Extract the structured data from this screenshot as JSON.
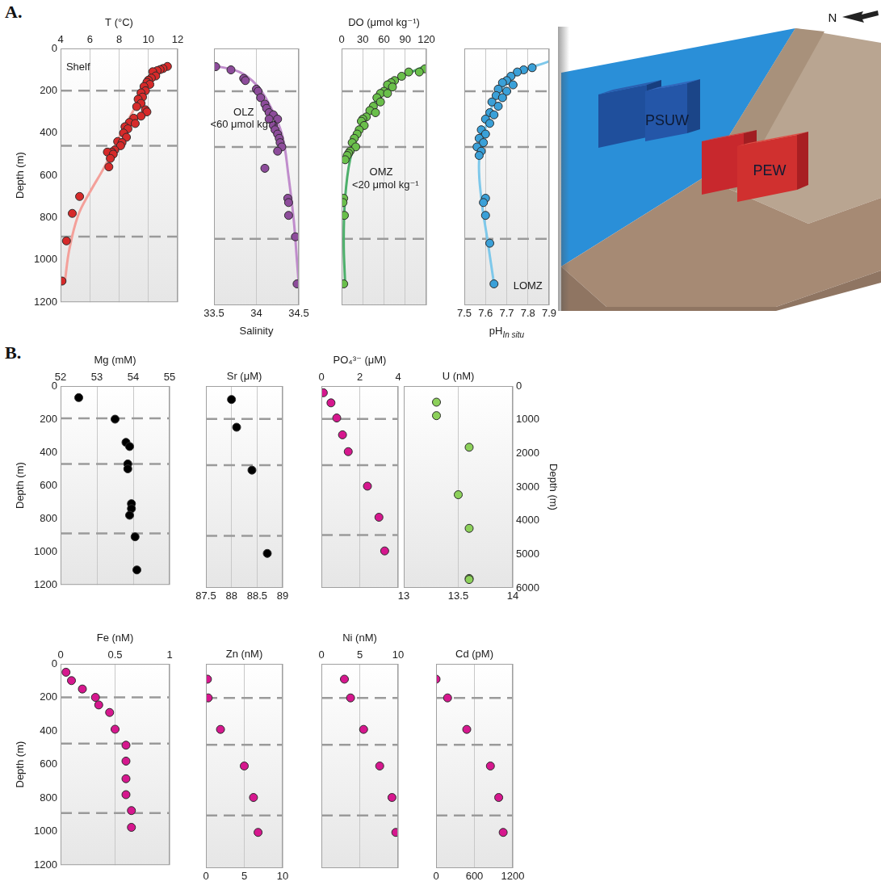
{
  "panel_labels": [
    "A.",
    "B."
  ],
  "diagram": {
    "labels": [
      {
        "text": "PSUW",
        "color": "#1f4f9c"
      },
      {
        "text": "PEW",
        "color": "#c8282d"
      }
    ],
    "north": "N"
  },
  "chart_data": [
    {
      "type": "scatter",
      "x_label": "T (°C)",
      "y_label": "Depth (m)",
      "xlim": [
        4,
        12
      ],
      "xticks": [
        4,
        6,
        8,
        10,
        12
      ],
      "ylim": [
        0,
        1200
      ],
      "yticks": [
        0,
        200,
        400,
        600,
        800,
        1000,
        1200
      ],
      "grid": true,
      "hlines": [
        200,
        460,
        890
      ],
      "annotations": [
        {
          "text": "Shelf",
          "x": 5.2,
          "y": 90
        }
      ],
      "series": [
        {
          "type": "line",
          "color": "#f4a09a",
          "x": [
            11.4,
            10,
            9,
            8,
            7,
            6,
            5.2,
            4.6,
            4.3
          ],
          "y": [
            70,
            170,
            290,
            420,
            560,
            680,
            790,
            950,
            1100
          ]
        },
        {
          "type": "scatter",
          "color": "#d62a2a",
          "x": [
            11.3,
            11,
            10.8,
            10.6,
            10.3,
            10.5,
            10.2,
            10,
            9.9,
            10.1,
            9.7,
            9.8,
            9.5,
            9.6,
            9.3,
            9.5,
            9.2,
            9.8,
            9.9,
            9.5,
            9,
            8.7,
            9.1,
            8.4,
            8.6,
            8.3,
            8.5,
            7.9,
            8.2,
            8.1,
            7.7,
            7.5,
            7.2,
            7.6,
            7.4,
            7.3,
            5.3,
            4.8,
            4.4,
            4.1
          ],
          "y": [
            85,
            95,
            100,
            105,
            110,
            130,
            140,
            150,
            160,
            170,
            180,
            200,
            210,
            230,
            240,
            260,
            275,
            290,
            300,
            320,
            330,
            350,
            355,
            370,
            380,
            400,
            420,
            440,
            445,
            460,
            480,
            490,
            490,
            500,
            520,
            560,
            700,
            780,
            910,
            1100
          ]
        }
      ]
    },
    {
      "type": "scatter",
      "x_label": "Salinity",
      "tick_labels": "x",
      "xlim": [
        33.5,
        34.5
      ],
      "xticks": [
        33.5,
        34,
        34.5
      ],
      "ylim": [
        0,
        1200
      ],
      "yticks": [
        0,
        200,
        400,
        600,
        800,
        1000,
        1200
      ],
      "grid": true,
      "hlines": [
        200,
        460,
        890
      ],
      "annotations": [
        {
          "text": "OLZ",
          "x": 33.85,
          "y": 300
        },
        {
          "text": "<60 μmol kg⁻¹",
          "x": 33.85,
          "y": 355
        }
      ],
      "series": [
        {
          "type": "line",
          "color": "#c08ccc",
          "x": [
            33.5,
            33.8,
            34,
            34.15,
            34.3,
            34.38,
            34.44,
            34.48,
            34.5
          ],
          "y": [
            80,
            110,
            170,
            260,
            400,
            600,
            800,
            1000,
            1100
          ]
        },
        {
          "type": "scatter",
          "color": "#8d4c9b",
          "x": [
            33.52,
            33.7,
            33.85,
            33.87,
            34.0,
            34.02,
            34.05,
            34.1,
            34.12,
            34.15,
            34.2,
            34.15,
            34.25,
            34.2,
            34.22,
            34.25,
            34.27,
            34.28,
            34.3,
            34.25,
            34.1,
            34.37,
            34.38,
            34.38,
            34.46,
            34.48
          ],
          "y": [
            85,
            100,
            140,
            150,
            190,
            200,
            230,
            260,
            280,
            300,
            310,
            330,
            330,
            360,
            380,
            400,
            420,
            440,
            460,
            480,
            560,
            700,
            720,
            780,
            880,
            1100
          ]
        }
      ]
    },
    {
      "type": "scatter",
      "x_label": "DO (μmol kg⁻¹)",
      "tick_labels": "x",
      "xlim": [
        0,
        120
      ],
      "xticks": [
        0,
        30,
        60,
        90,
        120
      ],
      "ylim": [
        0,
        1200
      ],
      "yticks": [
        0,
        200,
        400,
        600,
        800,
        1000,
        1200
      ],
      "grid": true,
      "hlines": [
        200,
        460,
        890
      ],
      "annotations": [
        {
          "text": "OMZ",
          "x": 56,
          "y": 578
        },
        {
          "text": "<20 μmol kg⁻¹",
          "x": 62,
          "y": 640
        }
      ],
      "series": [
        {
          "type": "line",
          "color": "#4caf6a",
          "x": [
            120,
            70,
            45,
            25,
            12,
            5,
            3,
            5
          ],
          "y": [
            80,
            160,
            260,
            380,
            520,
            700,
            900,
            1100
          ]
        },
        {
          "type": "scatter",
          "color": "#6abf4b",
          "x": [
            118,
            110,
            95,
            85,
            75,
            70,
            65,
            72,
            60,
            55,
            65,
            50,
            55,
            45,
            40,
            48,
            35,
            30,
            28,
            32,
            25,
            22,
            18,
            15,
            20,
            12,
            10,
            8,
            5,
            3,
            2,
            4,
            3
          ],
          "y": [
            95,
            110,
            110,
            130,
            150,
            160,
            170,
            180,
            200,
            210,
            210,
            230,
            250,
            270,
            290,
            300,
            320,
            330,
            340,
            360,
            380,
            400,
            420,
            440,
            460,
            480,
            490,
            500,
            520,
            700,
            720,
            780,
            1100
          ]
        }
      ]
    },
    {
      "type": "scatter",
      "x_label": "pH",
      "x_label_subscript": "In situ",
      "tick_labels": "x",
      "xlim": [
        7.5,
        7.9
      ],
      "xticks": [
        7.5,
        7.6,
        7.7,
        7.8,
        7.9
      ],
      "ylim": [
        0,
        1200
      ],
      "yticks": [
        0,
        200,
        400,
        600,
        800,
        1000,
        1200
      ],
      "grid": true,
      "hlines": [
        200,
        460,
        890
      ],
      "annotations": [
        {
          "text": "LOMZ",
          "x": 7.8,
          "y": 1110
        }
      ],
      "series": [
        {
          "type": "line",
          "color": "#7ec8ea",
          "x": [
            7.9,
            7.75,
            7.65,
            7.6,
            7.57,
            7.58,
            7.61,
            7.64
          ],
          "y": [
            60,
            120,
            230,
            370,
            520,
            700,
            900,
            1100
          ]
        },
        {
          "type": "scatter",
          "color": "#3aa0d8",
          "x": [
            7.82,
            7.78,
            7.75,
            7.72,
            7.7,
            7.68,
            7.73,
            7.66,
            7.7,
            7.65,
            7.68,
            7.63,
            7.66,
            7.62,
            7.64,
            7.6,
            7.62,
            7.58,
            7.6,
            7.57,
            7.59,
            7.56,
            7.58,
            7.57,
            7.6,
            7.59,
            7.6,
            7.62,
            7.64
          ],
          "y": [
            90,
            100,
            110,
            130,
            150,
            160,
            170,
            190,
            200,
            220,
            230,
            250,
            270,
            300,
            310,
            330,
            350,
            380,
            400,
            420,
            440,
            460,
            480,
            500,
            700,
            720,
            780,
            910,
            1100
          ]
        }
      ]
    },
    {
      "type": "scatter",
      "x_label": "Mg (mM)",
      "y_label": "Depth (m)",
      "xlim": [
        52,
        55
      ],
      "xticks": [
        52,
        53,
        54,
        55
      ],
      "ylim": [
        0,
        1200
      ],
      "yticks": [
        0,
        200,
        400,
        600,
        800,
        1000,
        1200
      ],
      "grid": true,
      "hlines": [
        195,
        470,
        890
      ],
      "series": [
        {
          "type": "scatter",
          "color": "#000000",
          "x": [
            52.5,
            53.5,
            53.8,
            53.9,
            53.85,
            53.85,
            53.95,
            53.95,
            53.9,
            54.05,
            54.1
          ],
          "y": [
            70,
            200,
            340,
            365,
            470,
            500,
            710,
            740,
            780,
            910,
            1110
          ]
        }
      ]
    },
    {
      "type": "scatter",
      "x_label": "Sr (μM)",
      "tick_labels": "x",
      "xlim": [
        87.5,
        89
      ],
      "xticks": [
        87.5,
        88,
        88.5,
        89
      ],
      "ylim": [
        0,
        1200
      ],
      "yticks": [
        0,
        200,
        400,
        600,
        800,
        1000,
        1200
      ],
      "grid": true,
      "hlines": [
        195,
        470,
        890
      ],
      "series": [
        {
          "type": "scatter",
          "color": "#000000",
          "x": [
            88,
            88.1,
            88.4,
            88.7
          ],
          "y": [
            80,
            245,
            500,
            995
          ]
        }
      ]
    },
    {
      "type": "scatter",
      "x_label": "PO₄³⁻ (μM)",
      "tick_labels": "x",
      "xlim": [
        0,
        4
      ],
      "xticks": [
        0,
        2,
        4
      ],
      "ylim": [
        0,
        1200
      ],
      "yticks": [
        0,
        200,
        400,
        600,
        800,
        1000,
        1200
      ],
      "grid": true,
      "hlines": [
        195,
        470,
        885
      ],
      "series": [
        {
          "type": "scatter",
          "color": "#d6178e",
          "x": [
            0.1,
            0.5,
            0.8,
            1.1,
            1.4,
            2.4,
            3.0,
            3.3
          ],
          "y": [
            40,
            100,
            190,
            290,
            390,
            595,
            780,
            980
          ]
        }
      ]
    },
    {
      "type": "scatter",
      "x_label": "U (nM)",
      "y_label": "Depth (m)",
      "xlim": [
        13,
        14
      ],
      "xticks": [
        13,
        13.5,
        14
      ],
      "ylim": [
        0,
        6000
      ],
      "yticks": [
        0,
        1000,
        2000,
        3000,
        4000,
        5000,
        6000
      ],
      "grid": true,
      "series": [
        {
          "type": "scatter",
          "color": "#8cd05a",
          "x": [
            13.3,
            13.3,
            13.6,
            13.5,
            13.6,
            13.6,
            13.6
          ],
          "y": [
            480,
            880,
            1820,
            3230,
            4230,
            5720,
            5750
          ]
        }
      ]
    },
    {
      "type": "scatter",
      "x_label": "Fe (nM)",
      "y_label": "Depth (m)",
      "xlim": [
        0,
        1
      ],
      "xticks": [
        0,
        0.5,
        1
      ],
      "ylim": [
        0,
        1200
      ],
      "yticks": [
        0,
        200,
        400,
        600,
        800,
        1000,
        1200
      ],
      "grid": true,
      "hlines": [
        200,
        475,
        890
      ],
      "series": [
        {
          "type": "scatter",
          "color": "#d6178e",
          "x": [
            0.05,
            0.1,
            0.2,
            0.32,
            0.35,
            0.45,
            0.5,
            0.6,
            0.6,
            0.6,
            0.6,
            0.65,
            0.65
          ],
          "y": [
            50,
            100,
            150,
            200,
            245,
            290,
            390,
            485,
            580,
            685,
            780,
            875,
            975
          ]
        }
      ]
    },
    {
      "type": "scatter",
      "x_label": "Zn (nM)",
      "tick_labels": "x",
      "xlim": [
        0,
        10
      ],
      "xticks": [
        0,
        5,
        10
      ],
      "ylim": [
        0,
        1200
      ],
      "yticks": [
        0,
        200,
        400,
        600,
        800,
        1000,
        1200
      ],
      "grid": true,
      "hlines": [
        200,
        475,
        890
      ],
      "series": [
        {
          "type": "scatter",
          "color": "#d6178e",
          "x": [
            0.2,
            0.3,
            1.9,
            5,
            6.2,
            6.8
          ],
          "y": [
            90,
            200,
            385,
            600,
            785,
            990
          ]
        }
      ]
    },
    {
      "type": "scatter",
      "x_label": "Ni (nM)",
      "tick_labels": "x",
      "xlim": [
        0,
        10
      ],
      "xticks": [
        0,
        5,
        10
      ],
      "ylim": [
        0,
        1200
      ],
      "yticks": [
        0,
        200,
        400,
        600,
        800,
        1000,
        1200
      ],
      "grid": true,
      "hlines": [
        200,
        475,
        890
      ],
      "series": [
        {
          "type": "scatter",
          "color": "#d6178e",
          "x": [
            3,
            3.8,
            5.5,
            7.6,
            9.2,
            9.7
          ],
          "y": [
            90,
            200,
            385,
            600,
            785,
            990
          ]
        }
      ]
    },
    {
      "type": "scatter",
      "x_label": "Cd (pM)",
      "tick_labels": "x",
      "xlim": [
        0,
        1200
      ],
      "xticks": [
        0,
        600,
        1200
      ],
      "ylim": [
        0,
        1200
      ],
      "yticks": [
        0,
        200,
        400,
        600,
        800,
        1000,
        1200
      ],
      "grid": true,
      "hlines": [
        200,
        475,
        890
      ],
      "series": [
        {
          "type": "scatter",
          "color": "#d6178e",
          "x": [
            0,
            180,
            480,
            850,
            980,
            1050
          ],
          "y": [
            90,
            200,
            385,
            600,
            785,
            990
          ]
        }
      ]
    }
  ]
}
